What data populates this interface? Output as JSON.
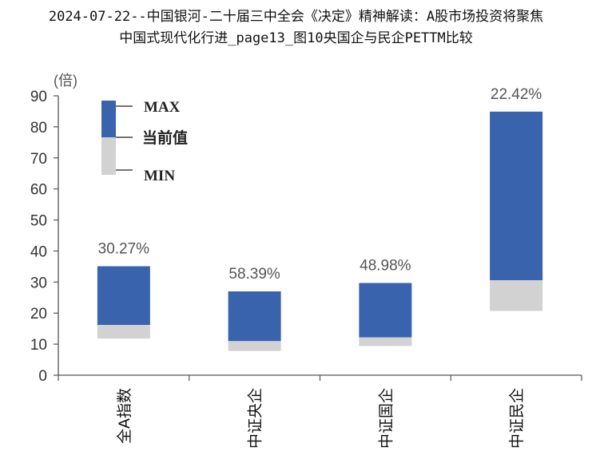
{
  "title_line1": "2024-07-22--中国银河-二十届三中全会《决定》精神解读：A股市场投资将聚焦",
  "title_line2": "中国式现代化行进_page13_图10央国企与民企PETTM比较",
  "chart_data": {
    "type": "bar",
    "subtype": "floating-range (min / current / max)",
    "unit_label": "(倍)",
    "ylim": [
      0,
      90
    ],
    "yticks": [
      0,
      10,
      20,
      30,
      40,
      50,
      60,
      70,
      80,
      90
    ],
    "categories": [
      "全A指数",
      "中证央企",
      "中证国企",
      "中证民企"
    ],
    "min": [
      11.8,
      7.8,
      9.4,
      20.7
    ],
    "current": [
      16.2,
      11.0,
      12.2,
      30.6
    ],
    "max": [
      35.1,
      27.0,
      29.7,
      84.9
    ],
    "percentile_labels": [
      "30.27%",
      "58.39%",
      "48.98%",
      "22.42%"
    ],
    "legend": {
      "max": "MAX",
      "current": "当前值",
      "min": "MIN"
    },
    "colors": {
      "upper": "#3A63AE",
      "lower": "#D3D2D3",
      "axis": "#555555",
      "label": "#555555"
    },
    "grid": false
  }
}
